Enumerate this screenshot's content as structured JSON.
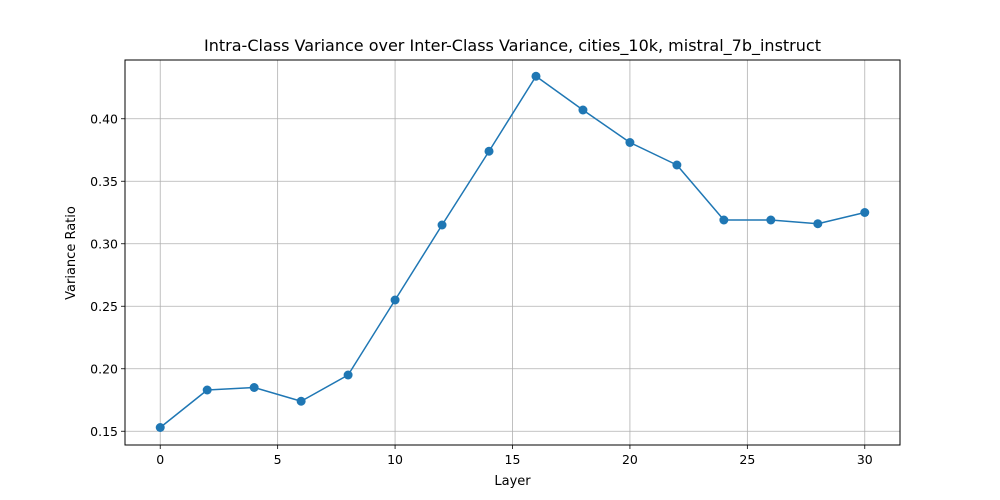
{
  "chart_data": {
    "type": "line",
    "title": "Intra-Class Variance over Inter-Class Variance, cities_10k, mistral_7b_instruct",
    "xlabel": "Layer",
    "ylabel": "Variance Ratio",
    "xlim": [
      -1.5,
      31.5
    ],
    "ylim": [
      0.139,
      0.447
    ],
    "xticks": [
      0,
      5,
      10,
      15,
      20,
      25,
      30
    ],
    "xtick_labels": [
      "0",
      "5",
      "10",
      "15",
      "20",
      "25",
      "30"
    ],
    "yticks": [
      0.15,
      0.2,
      0.25,
      0.3,
      0.35,
      0.4
    ],
    "ytick_labels": [
      "0.15",
      "0.20",
      "0.25",
      "0.30",
      "0.35",
      "0.40"
    ],
    "grid": true,
    "series": [
      {
        "color": "#1f77b4",
        "marker": "circle",
        "x": [
          0,
          2,
          4,
          6,
          8,
          10,
          12,
          14,
          16,
          18,
          20,
          22,
          24,
          26,
          28,
          30
        ],
        "y": [
          0.153,
          0.183,
          0.185,
          0.174,
          0.195,
          0.255,
          0.315,
          0.374,
          0.434,
          0.407,
          0.381,
          0.363,
          0.319,
          0.319,
          0.316,
          0.325
        ]
      }
    ]
  }
}
